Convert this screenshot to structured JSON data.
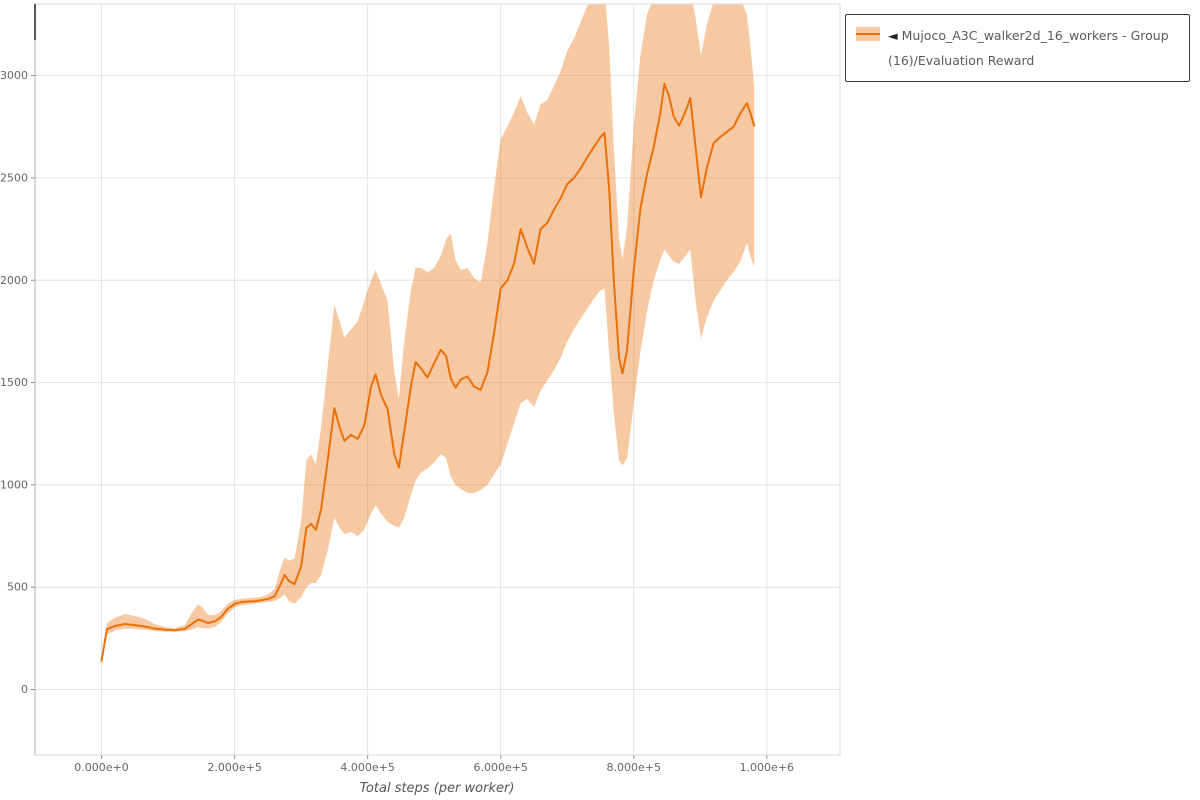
{
  "chart_data": {
    "type": "line",
    "title": "",
    "xlabel": "Total steps (per worker)",
    "ylabel": "",
    "xlim": [
      -100000,
      1110000
    ],
    "ylim": [
      -320,
      3350
    ],
    "grid": true,
    "legend": {
      "position": "top-right",
      "marker": "◄",
      "label": "Mujoco_A3C_walker2d_16_workers - Group(16)/Evaluation Reward"
    },
    "colors": {
      "line": "#e8710a",
      "band": "rgba(232,113,10,0.38)",
      "grid": "#e3e3e3",
      "tick_text": "#666666",
      "frame": "#d8d8d8"
    },
    "xticks": {
      "values": [
        0,
        200000,
        400000,
        600000,
        800000,
        1000000
      ],
      "labels": [
        "0.000e+0",
        "2.000e+5",
        "4.000e+5",
        "6.000e+5",
        "8.000e+5",
        "1.000e+6"
      ]
    },
    "yticks": {
      "values": [
        0,
        500,
        1000,
        1500,
        2000,
        2500,
        3000
      ],
      "labels": [
        "0",
        "500",
        "1000",
        "1500",
        "2000",
        "2500",
        "3000"
      ]
    },
    "series": [
      {
        "name": "Mujoco_A3C_walker2d_16_workers - Group(16)/Evaluation Reward",
        "points": [
          [
            0,
            140,
            132,
            152
          ],
          [
            8000,
            295,
            268,
            325
          ],
          [
            20000,
            310,
            288,
            350
          ],
          [
            35000,
            320,
            298,
            368
          ],
          [
            50000,
            315,
            296,
            360
          ],
          [
            65000,
            308,
            292,
            345
          ],
          [
            80000,
            298,
            286,
            320
          ],
          [
            95000,
            292,
            283,
            305
          ],
          [
            110000,
            290,
            282,
            300
          ],
          [
            125000,
            296,
            285,
            315
          ],
          [
            135000,
            318,
            292,
            370
          ],
          [
            145000,
            342,
            305,
            418
          ],
          [
            152000,
            335,
            300,
            400
          ],
          [
            160000,
            325,
            298,
            365
          ],
          [
            170000,
            333,
            305,
            362
          ],
          [
            180000,
            355,
            330,
            385
          ],
          [
            190000,
            395,
            372,
            420
          ],
          [
            200000,
            418,
            400,
            438
          ],
          [
            210000,
            427,
            412,
            443
          ],
          [
            220000,
            430,
            417,
            446
          ],
          [
            230000,
            431,
            419,
            448
          ],
          [
            240000,
            436,
            424,
            452
          ],
          [
            250000,
            443,
            428,
            465
          ],
          [
            260000,
            455,
            432,
            490
          ],
          [
            270000,
            520,
            450,
            600
          ],
          [
            275000,
            560,
            465,
            645
          ],
          [
            282000,
            530,
            430,
            630
          ],
          [
            290000,
            515,
            420,
            640
          ],
          [
            300000,
            600,
            450,
            820
          ],
          [
            308000,
            790,
            500,
            1120
          ],
          [
            315000,
            810,
            520,
            1150
          ],
          [
            322000,
            780,
            520,
            1100
          ],
          [
            330000,
            880,
            560,
            1280
          ],
          [
            340000,
            1120,
            680,
            1580
          ],
          [
            350000,
            1375,
            840,
            1880
          ],
          [
            358000,
            1280,
            790,
            1800
          ],
          [
            365000,
            1215,
            760,
            1720
          ],
          [
            375000,
            1245,
            770,
            1760
          ],
          [
            385000,
            1225,
            750,
            1800
          ],
          [
            395000,
            1290,
            780,
            1900
          ],
          [
            405000,
            1480,
            860,
            2000
          ],
          [
            412000,
            1540,
            900,
            2050
          ],
          [
            420000,
            1440,
            860,
            1980
          ],
          [
            430000,
            1370,
            820,
            1900
          ],
          [
            440000,
            1150,
            800,
            1550
          ],
          [
            447000,
            1085,
            790,
            1420
          ],
          [
            455000,
            1260,
            840,
            1700
          ],
          [
            465000,
            1480,
            950,
            1950
          ],
          [
            472000,
            1600,
            1020,
            2060
          ],
          [
            480000,
            1570,
            1060,
            2060
          ],
          [
            490000,
            1525,
            1080,
            2040
          ],
          [
            500000,
            1595,
            1110,
            2060
          ],
          [
            510000,
            1660,
            1150,
            2120
          ],
          [
            518000,
            1630,
            1130,
            2200
          ],
          [
            525000,
            1520,
            1040,
            2230
          ],
          [
            532000,
            1475,
            1000,
            2100
          ],
          [
            540000,
            1515,
            980,
            2050
          ],
          [
            550000,
            1530,
            960,
            2060
          ],
          [
            560000,
            1480,
            960,
            2010
          ],
          [
            570000,
            1465,
            975,
            1990
          ],
          [
            580000,
            1550,
            1000,
            2180
          ],
          [
            590000,
            1740,
            1050,
            2450
          ],
          [
            600000,
            1960,
            1100,
            2690
          ],
          [
            610000,
            2000,
            1200,
            2750
          ],
          [
            620000,
            2080,
            1300,
            2820
          ],
          [
            630000,
            2250,
            1400,
            2900
          ],
          [
            640000,
            2160,
            1420,
            2820
          ],
          [
            650000,
            2080,
            1380,
            2760
          ],
          [
            660000,
            2250,
            1460,
            2860
          ],
          [
            670000,
            2280,
            1510,
            2880
          ],
          [
            680000,
            2345,
            1560,
            2950
          ],
          [
            690000,
            2400,
            1620,
            3020
          ],
          [
            700000,
            2470,
            1700,
            3120
          ],
          [
            710000,
            2500,
            1760,
            3180
          ],
          [
            720000,
            2545,
            1810,
            3260
          ],
          [
            730000,
            2600,
            1860,
            3340
          ],
          [
            740000,
            2650,
            1910,
            3400
          ],
          [
            750000,
            2700,
            1950,
            3420
          ],
          [
            756000,
            2720,
            1960,
            3420
          ],
          [
            763000,
            2450,
            1650,
            3150
          ],
          [
            770000,
            2000,
            1350,
            2650
          ],
          [
            778000,
            1620,
            1120,
            2200
          ],
          [
            783000,
            1545,
            1095,
            2100
          ],
          [
            790000,
            1660,
            1130,
            2260
          ],
          [
            800000,
            2050,
            1400,
            2750
          ],
          [
            810000,
            2350,
            1650,
            3100
          ],
          [
            820000,
            2520,
            1850,
            3300
          ],
          [
            830000,
            2650,
            2000,
            3380
          ],
          [
            840000,
            2820,
            2100,
            3420
          ],
          [
            846000,
            2960,
            2150,
            3420
          ],
          [
            853000,
            2900,
            2120,
            3400
          ],
          [
            860000,
            2800,
            2090,
            3380
          ],
          [
            868000,
            2755,
            2080,
            3360
          ],
          [
            876000,
            2810,
            2110,
            3400
          ],
          [
            885000,
            2890,
            2150,
            3420
          ],
          [
            893000,
            2650,
            1900,
            3280
          ],
          [
            901000,
            2405,
            1715,
            3100
          ],
          [
            910000,
            2550,
            1820,
            3250
          ],
          [
            920000,
            2670,
            1900,
            3360
          ],
          [
            930000,
            2700,
            1950,
            3400
          ],
          [
            940000,
            2725,
            2000,
            3400
          ],
          [
            950000,
            2750,
            2040,
            3400
          ],
          [
            960000,
            2815,
            2090,
            3380
          ],
          [
            970000,
            2865,
            2180,
            3300
          ],
          [
            975000,
            2820,
            2120,
            3150
          ],
          [
            981000,
            2755,
            2065,
            2950
          ]
        ]
      }
    ]
  }
}
